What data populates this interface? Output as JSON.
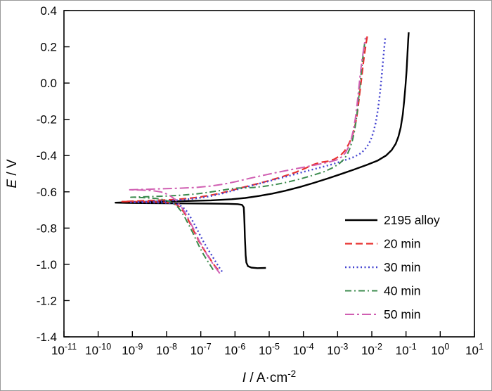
{
  "figure": {
    "background": "#ffffff",
    "border_color": "#9a9a9a"
  },
  "chart_data": {
    "type": "line",
    "title": "",
    "x_scale": "log",
    "xlabel": "I / A·cm⁻²",
    "xlabel_parts": {
      "var": "I",
      "rest": " / A·cm",
      "sup": "-2"
    },
    "ylabel": "E / V",
    "ylabel_parts": {
      "var": "E",
      "rest": " / V"
    },
    "xlim": [
      1e-11,
      10
    ],
    "xlim_exp": [
      -11,
      1
    ],
    "ylim": [
      -1.4,
      0.4
    ],
    "x_ticks_exp": [
      -11,
      -10,
      -9,
      -8,
      -7,
      -6,
      -5,
      -4,
      -3,
      -2,
      -1,
      0,
      1
    ],
    "y_ticks": [
      -1.4,
      -1.2,
      -1,
      -0.8,
      -0.6,
      -0.4,
      -0.2,
      0,
      0.2,
      0.4
    ],
    "grid": false,
    "legend_position": "inside-lower-right",
    "axis_color": "#000000",
    "frame_color": "#000000",
    "series": [
      {
        "name": "2195 alloy",
        "color": "#000000",
        "dash": "",
        "width": 2.4,
        "points": [
          [
            8e-06,
            -1.02
          ],
          [
            4.5e-06,
            -1.021
          ],
          [
            3e-06,
            -1.018
          ],
          [
            2.4e-06,
            -1.01
          ],
          [
            2.15e-06,
            -0.99
          ],
          [
            2.05e-06,
            -0.95
          ],
          [
            2e-06,
            -0.9
          ],
          [
            1.95e-06,
            -0.85
          ],
          [
            1.9e-06,
            -0.78
          ],
          [
            1.85e-06,
            -0.72
          ],
          [
            1.8e-06,
            -0.685
          ],
          [
            1.6e-06,
            -0.672
          ],
          [
            1.2e-06,
            -0.668
          ],
          [
            6e-07,
            -0.666
          ],
          [
            2e-07,
            -0.665
          ],
          [
            5e-08,
            -0.664
          ],
          [
            1e-08,
            -0.663
          ],
          [
            2e-09,
            -0.662
          ],
          [
            7e-10,
            -0.661
          ],
          [
            3.2e-10,
            -0.66
          ],
          [
            8e-10,
            -0.657
          ],
          [
            3e-09,
            -0.655
          ],
          [
            1e-08,
            -0.653
          ],
          [
            5e-08,
            -0.65
          ],
          [
            2e-07,
            -0.647
          ],
          [
            8e-07,
            -0.641
          ],
          [
            2e-06,
            -0.634
          ],
          [
            5e-06,
            -0.623
          ],
          [
            1.2e-05,
            -0.61
          ],
          [
            3e-05,
            -0.594
          ],
          [
            8e-05,
            -0.573
          ],
          [
            0.0002,
            -0.551
          ],
          [
            0.0005,
            -0.527
          ],
          [
            0.0012,
            -0.503
          ],
          [
            0.003,
            -0.477
          ],
          [
            0.007,
            -0.452
          ],
          [
            0.015,
            -0.427
          ],
          [
            0.026,
            -0.4
          ],
          [
            0.038,
            -0.37
          ],
          [
            0.05,
            -0.335
          ],
          [
            0.06,
            -0.295
          ],
          [
            0.07,
            -0.245
          ],
          [
            0.08,
            -0.175
          ],
          [
            0.088,
            -0.1
          ],
          [
            0.096,
            -0.02
          ],
          [
            0.104,
            0.07
          ],
          [
            0.11,
            0.16
          ],
          [
            0.116,
            0.24
          ],
          [
            0.12,
            0.28
          ]
        ]
      },
      {
        "name": "20 min",
        "color": "#e8312f",
        "dash": "10,5",
        "width": 2.2,
        "points": [
          [
            3.2e-07,
            -1.03
          ],
          [
            2.6e-07,
            -1.01
          ],
          [
            2.1e-07,
            -0.985
          ],
          [
            1.6e-07,
            -0.95
          ],
          [
            1.2e-07,
            -0.915
          ],
          [
            9e-08,
            -0.875
          ],
          [
            7e-08,
            -0.835
          ],
          [
            5.5e-08,
            -0.795
          ],
          [
            4.2e-08,
            -0.75
          ],
          [
            3.3e-08,
            -0.715
          ],
          [
            2.6e-08,
            -0.69
          ],
          [
            2e-08,
            -0.672
          ],
          [
            1.4e-08,
            -0.662
          ],
          [
            8e-09,
            -0.657
          ],
          [
            3e-09,
            -0.655
          ],
          [
            1.2e-09,
            -0.654
          ],
          [
            5e-10,
            -0.654
          ],
          [
            1.5e-09,
            -0.65
          ],
          [
            5e-09,
            -0.647
          ],
          [
            1.5e-08,
            -0.643
          ],
          [
            4e-08,
            -0.637
          ],
          [
            1e-07,
            -0.628
          ],
          [
            2.5e-07,
            -0.615
          ],
          [
            6e-07,
            -0.598
          ],
          [
            1.5e-06,
            -0.578
          ],
          [
            4e-06,
            -0.558
          ],
          [
            1e-05,
            -0.538
          ],
          [
            2.5e-05,
            -0.516
          ],
          [
            6e-05,
            -0.492
          ],
          [
            0.00012,
            -0.468
          ],
          [
            0.0002,
            -0.449
          ],
          [
            0.0003,
            -0.438
          ],
          [
            0.0005,
            -0.432
          ],
          [
            0.0008,
            -0.42
          ],
          [
            0.0012,
            -0.4
          ],
          [
            0.0016,
            -0.375
          ],
          [
            0.002,
            -0.345
          ],
          [
            0.0024,
            -0.315
          ],
          [
            0.0028,
            -0.28
          ],
          [
            0.0032,
            -0.24
          ],
          [
            0.0036,
            -0.19
          ],
          [
            0.004,
            -0.13
          ],
          [
            0.0044,
            -0.06
          ],
          [
            0.0049,
            0.01
          ],
          [
            0.0054,
            0.08
          ],
          [
            0.006,
            0.15
          ],
          [
            0.0067,
            0.21
          ],
          [
            0.0074,
            0.26
          ]
        ]
      },
      {
        "name": "30 min",
        "color": "#4343d0",
        "dash": "2,3.5",
        "width": 2.4,
        "points": [
          [
            4.2e-07,
            -1.04
          ],
          [
            3.4e-07,
            -1.015
          ],
          [
            2.7e-07,
            -0.985
          ],
          [
            2.1e-07,
            -0.95
          ],
          [
            1.6e-07,
            -0.915
          ],
          [
            1.2e-07,
            -0.875
          ],
          [
            9e-08,
            -0.83
          ],
          [
            7e-08,
            -0.79
          ],
          [
            5.2e-08,
            -0.745
          ],
          [
            4e-08,
            -0.71
          ],
          [
            3e-08,
            -0.685
          ],
          [
            2.2e-08,
            -0.67
          ],
          [
            1.4e-08,
            -0.663
          ],
          [
            7e-09,
            -0.66
          ],
          [
            2.5e-09,
            -0.659
          ],
          [
            9e-10,
            -0.658
          ],
          [
            2.5e-09,
            -0.654
          ],
          [
            8e-09,
            -0.651
          ],
          [
            2.5e-08,
            -0.645
          ],
          [
            7e-08,
            -0.637
          ],
          [
            1.8e-07,
            -0.625
          ],
          [
            4.5e-07,
            -0.608
          ],
          [
            1.1e-06,
            -0.588
          ],
          [
            2.8e-06,
            -0.568
          ],
          [
            7e-06,
            -0.548
          ],
          [
            1.8e-05,
            -0.528
          ],
          [
            4.5e-05,
            -0.508
          ],
          [
            0.00011,
            -0.488
          ],
          [
            0.00028,
            -0.468
          ],
          [
            0.0007,
            -0.448
          ],
          [
            0.0015,
            -0.428
          ],
          [
            0.003,
            -0.408
          ],
          [
            0.005,
            -0.385
          ],
          [
            0.007,
            -0.355
          ],
          [
            0.009,
            -0.32
          ],
          [
            0.011,
            -0.275
          ],
          [
            0.013,
            -0.22
          ],
          [
            0.015,
            -0.15
          ],
          [
            0.017,
            -0.07
          ],
          [
            0.019,
            0.02
          ],
          [
            0.021,
            0.11
          ],
          [
            0.023,
            0.19
          ],
          [
            0.025,
            0.26
          ]
        ]
      },
      {
        "name": "40 min",
        "color": "#3c8b4e",
        "dash": "9,4,2,4",
        "width": 2.0,
        "points": [
          [
            2.3e-07,
            -1.03
          ],
          [
            1.9e-07,
            -1.005
          ],
          [
            1.5e-07,
            -0.975
          ],
          [
            1.2e-07,
            -0.945
          ],
          [
            9.5e-08,
            -0.91
          ],
          [
            7.5e-08,
            -0.87
          ],
          [
            5.8e-08,
            -0.825
          ],
          [
            4.4e-08,
            -0.78
          ],
          [
            3.4e-08,
            -0.74
          ],
          [
            2.6e-08,
            -0.705
          ],
          [
            2e-08,
            -0.678
          ],
          [
            1.4e-08,
            -0.658
          ],
          [
            9e-09,
            -0.645
          ],
          [
            5e-09,
            -0.637
          ],
          [
            2e-09,
            -0.632
          ],
          [
            9e-10,
            -0.63
          ],
          [
            2.5e-09,
            -0.627
          ],
          [
            8e-09,
            -0.624
          ],
          [
            2.5e-08,
            -0.619
          ],
          [
            7e-08,
            -0.612
          ],
          [
            1.8e-07,
            -0.602
          ],
          [
            4e-07,
            -0.592
          ],
          [
            7e-07,
            -0.584
          ],
          [
            1.2e-06,
            -0.579
          ],
          [
            2e-06,
            -0.578
          ],
          [
            3.5e-06,
            -0.576
          ],
          [
            7e-06,
            -0.57
          ],
          [
            1.5e-05,
            -0.56
          ],
          [
            3.5e-05,
            -0.546
          ],
          [
            8e-05,
            -0.529
          ],
          [
            0.00018,
            -0.51
          ],
          [
            0.0004,
            -0.489
          ],
          [
            0.0007,
            -0.468
          ],
          [
            0.0011,
            -0.446
          ],
          [
            0.0015,
            -0.422
          ],
          [
            0.0019,
            -0.395
          ],
          [
            0.0023,
            -0.36
          ],
          [
            0.0027,
            -0.318
          ],
          [
            0.0031,
            -0.268
          ],
          [
            0.0035,
            -0.205
          ],
          [
            0.0039,
            -0.13
          ],
          [
            0.0043,
            -0.05
          ],
          [
            0.0048,
            0.04
          ],
          [
            0.0053,
            0.12
          ],
          [
            0.0059,
            0.19
          ],
          [
            0.0065,
            0.25
          ]
        ]
      },
      {
        "name": "50 min",
        "color": "#d05fb2",
        "dash": "13,4,3,4",
        "width": 2.0,
        "points": [
          [
            3.6e-07,
            -1.05
          ],
          [
            3e-07,
            -1.03
          ],
          [
            2.4e-07,
            -1.005
          ],
          [
            1.9e-07,
            -0.975
          ],
          [
            1.5e-07,
            -0.945
          ],
          [
            1.2e-07,
            -0.91
          ],
          [
            9e-08,
            -0.87
          ],
          [
            7e-08,
            -0.825
          ],
          [
            5.3e-08,
            -0.78
          ],
          [
            4e-08,
            -0.735
          ],
          [
            3e-08,
            -0.695
          ],
          [
            2.2e-08,
            -0.662
          ],
          [
            1.6e-08,
            -0.635
          ],
          [
            1.1e-08,
            -0.615
          ],
          [
            7e-09,
            -0.601
          ],
          [
            4e-09,
            -0.594
          ],
          [
            1.8e-09,
            -0.59
          ],
          [
            8e-10,
            -0.589
          ],
          [
            2.5e-09,
            -0.586
          ],
          [
            8e-09,
            -0.583
          ],
          [
            2.5e-08,
            -0.58
          ],
          [
            7e-08,
            -0.576
          ],
          [
            1.8e-07,
            -0.569
          ],
          [
            4.5e-07,
            -0.558
          ],
          [
            1.1e-06,
            -0.543
          ],
          [
            2.8e-06,
            -0.525
          ],
          [
            7e-06,
            -0.508
          ],
          [
            1.8e-05,
            -0.492
          ],
          [
            4.5e-05,
            -0.477
          ],
          [
            0.00011,
            -0.463
          ],
          [
            0.00025,
            -0.45
          ],
          [
            0.0005,
            -0.438
          ],
          [
            0.0009,
            -0.425
          ],
          [
            0.0013,
            -0.408
          ],
          [
            0.0017,
            -0.385
          ],
          [
            0.0021,
            -0.352
          ],
          [
            0.0025,
            -0.31
          ],
          [
            0.0029,
            -0.258
          ],
          [
            0.0033,
            -0.195
          ],
          [
            0.0037,
            -0.12
          ],
          [
            0.0041,
            -0.04
          ],
          [
            0.0046,
            0.05
          ],
          [
            0.0052,
            0.13
          ],
          [
            0.0059,
            0.2
          ],
          [
            0.0066,
            0.25
          ]
        ]
      }
    ]
  }
}
